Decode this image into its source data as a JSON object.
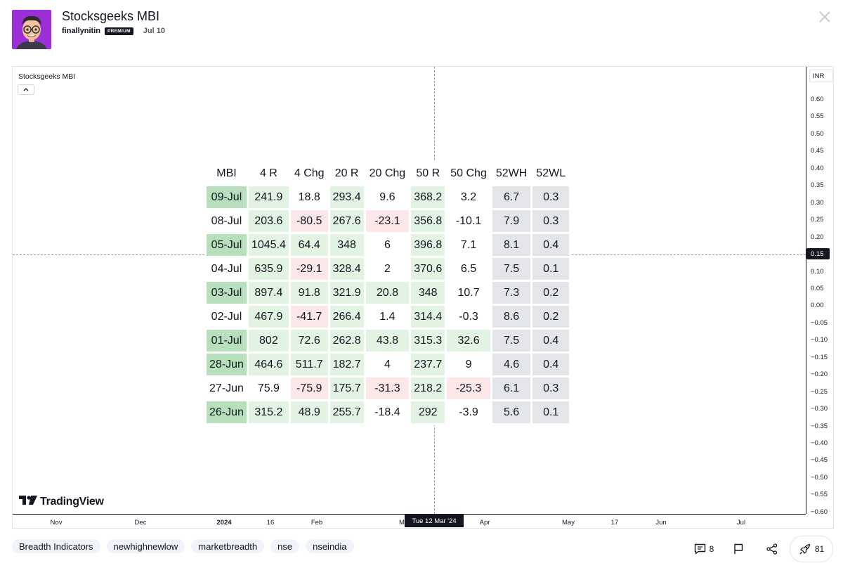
{
  "header": {
    "title": "Stocksgeeks MBI",
    "author": "finallynitin",
    "badge": "PREMIUM",
    "date": "Jul 10"
  },
  "chart": {
    "label": "Stocksgeeks MBI",
    "currency": "INR",
    "logo_text": "TradingView",
    "price_ticks": [
      "0.60",
      "0.55",
      "0.50",
      "0.45",
      "0.40",
      "0.35",
      "0.30",
      "0.25",
      "0.20",
      "0.15",
      "0.10",
      "0.05",
      "0.00",
      "−0.05",
      "−0.10",
      "−0.15",
      "−0.20",
      "−0.25",
      "−0.30",
      "−0.35",
      "−0.40",
      "−0.45",
      "−0.50",
      "−0.55",
      "−0.60"
    ],
    "crosshair_price": "0.15",
    "crosshair_time": "Tue 12 Mar '24",
    "time_labels": [
      {
        "text": "Nov",
        "bold": false
      },
      {
        "text": "Dec",
        "bold": false
      },
      {
        "text": "2024",
        "bold": true
      },
      {
        "text": "16",
        "bold": false
      },
      {
        "text": "Feb",
        "bold": false
      },
      {
        "text": "M",
        "bold": false
      },
      {
        "text": "Apr",
        "bold": false
      },
      {
        "text": "May",
        "bold": false
      },
      {
        "text": "17",
        "bold": false
      },
      {
        "text": "Jun",
        "bold": false
      },
      {
        "text": "Jul",
        "bold": false
      }
    ]
  },
  "table": {
    "headers": [
      "MBI",
      "4 R",
      "4 Chg",
      "20 R",
      "20 Chg",
      "50 R",
      "50 Chg",
      "52WH",
      "52WL"
    ],
    "rows": [
      [
        {
          "v": "09-Jul",
          "c": "g-dark"
        },
        {
          "v": "241.9",
          "c": "g-light"
        },
        {
          "v": "18.8",
          "c": "white"
        },
        {
          "v": "293.4",
          "c": "g-light"
        },
        {
          "v": "9.6",
          "c": "white"
        },
        {
          "v": "368.2",
          "c": "g-light"
        },
        {
          "v": "3.2",
          "c": "white"
        },
        {
          "v": "6.7",
          "c": "gray"
        },
        {
          "v": "0.3",
          "c": "gray"
        }
      ],
      [
        {
          "v": "08-Jul",
          "c": "white"
        },
        {
          "v": "203.6",
          "c": "g-light"
        },
        {
          "v": "-80.5",
          "c": "r-light"
        },
        {
          "v": "267.6",
          "c": "g-light"
        },
        {
          "v": "-23.1",
          "c": "r-light"
        },
        {
          "v": "356.8",
          "c": "g-light"
        },
        {
          "v": "-10.1",
          "c": "white"
        },
        {
          "v": "7.9",
          "c": "gray"
        },
        {
          "v": "0.3",
          "c": "gray"
        }
      ],
      [
        {
          "v": "05-Jul",
          "c": "g-dark"
        },
        {
          "v": "1045.4",
          "c": "g-light"
        },
        {
          "v": "64.4",
          "c": "g-light"
        },
        {
          "v": "348",
          "c": "g-light"
        },
        {
          "v": "6",
          "c": "white"
        },
        {
          "v": "396.8",
          "c": "g-light"
        },
        {
          "v": "7.1",
          "c": "white"
        },
        {
          "v": "8.1",
          "c": "gray"
        },
        {
          "v": "0.4",
          "c": "gray"
        }
      ],
      [
        {
          "v": "04-Jul",
          "c": "white"
        },
        {
          "v": "635.9",
          "c": "g-light"
        },
        {
          "v": "-29.1",
          "c": "r-light"
        },
        {
          "v": "328.4",
          "c": "g-light"
        },
        {
          "v": "2",
          "c": "white"
        },
        {
          "v": "370.6",
          "c": "g-light"
        },
        {
          "v": "6.5",
          "c": "white"
        },
        {
          "v": "7.5",
          "c": "gray"
        },
        {
          "v": "0.1",
          "c": "gray"
        }
      ],
      [
        {
          "v": "03-Jul",
          "c": "g-dark"
        },
        {
          "v": "897.4",
          "c": "g-light"
        },
        {
          "v": "91.8",
          "c": "g-light"
        },
        {
          "v": "321.9",
          "c": "g-light"
        },
        {
          "v": "20.8",
          "c": "g-light"
        },
        {
          "v": "348",
          "c": "g-light"
        },
        {
          "v": "10.7",
          "c": "white"
        },
        {
          "v": "7.3",
          "c": "gray"
        },
        {
          "v": "0.2",
          "c": "gray"
        }
      ],
      [
        {
          "v": "02-Jul",
          "c": "white"
        },
        {
          "v": "467.9",
          "c": "g-light"
        },
        {
          "v": "-41.7",
          "c": "r-light"
        },
        {
          "v": "266.4",
          "c": "g-light"
        },
        {
          "v": "1.4",
          "c": "white"
        },
        {
          "v": "314.4",
          "c": "g-light"
        },
        {
          "v": "-0.3",
          "c": "white"
        },
        {
          "v": "8.6",
          "c": "gray"
        },
        {
          "v": "0.2",
          "c": "gray"
        }
      ],
      [
        {
          "v": "01-Jul",
          "c": "g-dark"
        },
        {
          "v": "802",
          "c": "g-light"
        },
        {
          "v": "72.6",
          "c": "g-light"
        },
        {
          "v": "262.8",
          "c": "g-light"
        },
        {
          "v": "43.8",
          "c": "g-light"
        },
        {
          "v": "315.3",
          "c": "g-light"
        },
        {
          "v": "32.6",
          "c": "g-light"
        },
        {
          "v": "7.5",
          "c": "gray"
        },
        {
          "v": "0.4",
          "c": "gray"
        }
      ],
      [
        {
          "v": "28-Jun",
          "c": "g-dark"
        },
        {
          "v": "464.6",
          "c": "g-light"
        },
        {
          "v": "511.7",
          "c": "g-light"
        },
        {
          "v": "182.7",
          "c": "g-light"
        },
        {
          "v": "4",
          "c": "white"
        },
        {
          "v": "237.7",
          "c": "g-light"
        },
        {
          "v": "9",
          "c": "white"
        },
        {
          "v": "4.6",
          "c": "gray"
        },
        {
          "v": "0.4",
          "c": "gray"
        }
      ],
      [
        {
          "v": "27-Jun",
          "c": "white"
        },
        {
          "v": "75.9",
          "c": "white"
        },
        {
          "v": "-75.9",
          "c": "r-light"
        },
        {
          "v": "175.7",
          "c": "g-light"
        },
        {
          "v": "-31.3",
          "c": "r-light"
        },
        {
          "v": "218.2",
          "c": "g-light"
        },
        {
          "v": "-25.3",
          "c": "r-light"
        },
        {
          "v": "6.1",
          "c": "gray"
        },
        {
          "v": "0.3",
          "c": "gray"
        }
      ],
      [
        {
          "v": "26-Jun",
          "c": "g-dark"
        },
        {
          "v": "315.2",
          "c": "g-light"
        },
        {
          "v": "48.9",
          "c": "g-light"
        },
        {
          "v": "255.7",
          "c": "g-light"
        },
        {
          "v": "-18.4",
          "c": "white"
        },
        {
          "v": "292",
          "c": "g-light"
        },
        {
          "v": "-3.9",
          "c": "white"
        },
        {
          "v": "5.6",
          "c": "gray"
        },
        {
          "v": "0.1",
          "c": "gray"
        }
      ]
    ]
  },
  "tags": [
    "Breadth Indicators",
    "newhighnewlow",
    "marketbreadth",
    "nse",
    "nseindia"
  ],
  "actions": {
    "comments_count": "8",
    "boosts_count": "81"
  }
}
